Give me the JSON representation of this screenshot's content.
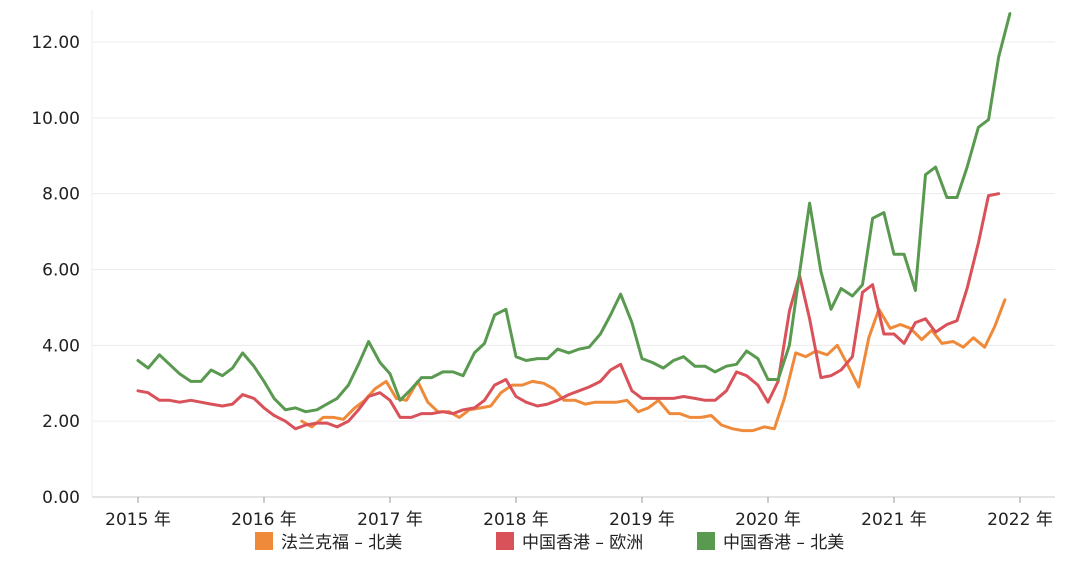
{
  "chart_data": {
    "type": "line",
    "ylim": [
      0,
      13
    ],
    "y_ticks": [
      "0.00",
      "2.00",
      "4.00",
      "6.00",
      "8.00",
      "10.00",
      "12.00"
    ],
    "x_ticks": [
      "2015 年",
      "2016 年",
      "2017 年",
      "2018 年",
      "2019 年",
      "2020 年",
      "2021 年",
      "2022 年"
    ],
    "grid": true,
    "legend_position": "bottom",
    "series": [
      {
        "name": "法兰克福 – 北美",
        "color": "#ef8a3a",
        "points": [
          [
            2016.3,
            2.0
          ],
          [
            2016.38,
            1.85
          ],
          [
            2016.47,
            2.1
          ],
          [
            2016.55,
            2.1
          ],
          [
            2016.63,
            2.05
          ],
          [
            2016.72,
            2.35
          ],
          [
            2016.8,
            2.55
          ],
          [
            2016.88,
            2.85
          ],
          [
            2016.97,
            3.05
          ],
          [
            2017.05,
            2.6
          ],
          [
            2017.13,
            2.55
          ],
          [
            2017.22,
            3.05
          ],
          [
            2017.3,
            2.5
          ],
          [
            2017.38,
            2.25
          ],
          [
            2017.47,
            2.25
          ],
          [
            2017.55,
            2.1
          ],
          [
            2017.63,
            2.3
          ],
          [
            2017.72,
            2.35
          ],
          [
            2017.8,
            2.4
          ],
          [
            2017.88,
            2.75
          ],
          [
            2017.97,
            2.95
          ],
          [
            2018.05,
            2.95
          ],
          [
            2018.13,
            3.05
          ],
          [
            2018.22,
            3.0
          ],
          [
            2018.3,
            2.85
          ],
          [
            2018.38,
            2.55
          ],
          [
            2018.47,
            2.55
          ],
          [
            2018.55,
            2.45
          ],
          [
            2018.63,
            2.5
          ],
          [
            2018.72,
            2.5
          ],
          [
            2018.8,
            2.5
          ],
          [
            2018.88,
            2.55
          ],
          [
            2018.97,
            2.25
          ],
          [
            2019.05,
            2.35
          ],
          [
            2019.13,
            2.55
          ],
          [
            2019.22,
            2.2
          ],
          [
            2019.3,
            2.2
          ],
          [
            2019.38,
            2.1
          ],
          [
            2019.47,
            2.1
          ],
          [
            2019.55,
            2.15
          ],
          [
            2019.63,
            1.9
          ],
          [
            2019.72,
            1.8
          ],
          [
            2019.8,
            1.75
          ],
          [
            2019.88,
            1.75
          ],
          [
            2019.97,
            1.85
          ],
          [
            2020.05,
            1.8
          ],
          [
            2020.13,
            2.6
          ],
          [
            2020.22,
            3.8
          ],
          [
            2020.3,
            3.7
          ],
          [
            2020.38,
            3.85
          ],
          [
            2020.47,
            3.75
          ],
          [
            2020.55,
            4.0
          ],
          [
            2020.63,
            3.5
          ],
          [
            2020.72,
            2.9
          ],
          [
            2020.8,
            4.2
          ],
          [
            2020.88,
            4.95
          ],
          [
            2020.97,
            4.45
          ],
          [
            2021.05,
            4.55
          ],
          [
            2021.13,
            4.45
          ],
          [
            2021.22,
            4.15
          ],
          [
            2021.3,
            4.4
          ],
          [
            2021.38,
            4.05
          ],
          [
            2021.47,
            4.1
          ],
          [
            2021.55,
            3.95
          ],
          [
            2021.63,
            4.2
          ],
          [
            2021.72,
            3.95
          ],
          [
            2021.8,
            4.5
          ],
          [
            2021.88,
            5.2
          ]
        ]
      },
      {
        "name": "中国香港 – 欧洲",
        "color": "#d9525a",
        "points": [
          [
            2015.0,
            2.8
          ],
          [
            2015.08,
            2.75
          ],
          [
            2015.17,
            2.55
          ],
          [
            2015.25,
            2.55
          ],
          [
            2015.33,
            2.5
          ],
          [
            2015.42,
            2.55
          ],
          [
            2015.5,
            2.5
          ],
          [
            2015.58,
            2.45
          ],
          [
            2015.67,
            2.4
          ],
          [
            2015.75,
            2.45
          ],
          [
            2015.83,
            2.7
          ],
          [
            2015.92,
            2.6
          ],
          [
            2016.0,
            2.35
          ],
          [
            2016.08,
            2.15
          ],
          [
            2016.17,
            2.0
          ],
          [
            2016.25,
            1.8
          ],
          [
            2016.33,
            1.9
          ],
          [
            2016.42,
            1.95
          ],
          [
            2016.5,
            1.95
          ],
          [
            2016.58,
            1.85
          ],
          [
            2016.67,
            2.0
          ],
          [
            2016.75,
            2.3
          ],
          [
            2016.83,
            2.65
          ],
          [
            2016.92,
            2.75
          ],
          [
            2017.0,
            2.55
          ],
          [
            2017.08,
            2.1
          ],
          [
            2017.17,
            2.1
          ],
          [
            2017.25,
            2.2
          ],
          [
            2017.33,
            2.2
          ],
          [
            2017.42,
            2.25
          ],
          [
            2017.5,
            2.2
          ],
          [
            2017.58,
            2.3
          ],
          [
            2017.67,
            2.35
          ],
          [
            2017.75,
            2.55
          ],
          [
            2017.83,
            2.95
          ],
          [
            2017.92,
            3.1
          ],
          [
            2018.0,
            2.65
          ],
          [
            2018.08,
            2.5
          ],
          [
            2018.17,
            2.4
          ],
          [
            2018.25,
            2.45
          ],
          [
            2018.33,
            2.55
          ],
          [
            2018.42,
            2.7
          ],
          [
            2018.5,
            2.8
          ],
          [
            2018.58,
            2.9
          ],
          [
            2018.67,
            3.05
          ],
          [
            2018.75,
            3.35
          ],
          [
            2018.83,
            3.5
          ],
          [
            2018.92,
            2.8
          ],
          [
            2019.0,
            2.6
          ],
          [
            2019.08,
            2.6
          ],
          [
            2019.17,
            2.6
          ],
          [
            2019.25,
            2.6
          ],
          [
            2019.33,
            2.65
          ],
          [
            2019.42,
            2.6
          ],
          [
            2019.5,
            2.55
          ],
          [
            2019.58,
            2.55
          ],
          [
            2019.67,
            2.8
          ],
          [
            2019.75,
            3.3
          ],
          [
            2019.83,
            3.2
          ],
          [
            2019.92,
            2.95
          ],
          [
            2020.0,
            2.5
          ],
          [
            2020.08,
            3.05
          ],
          [
            2020.17,
            4.9
          ],
          [
            2020.25,
            5.85
          ],
          [
            2020.33,
            4.7
          ],
          [
            2020.42,
            3.15
          ],
          [
            2020.5,
            3.2
          ],
          [
            2020.58,
            3.35
          ],
          [
            2020.67,
            3.7
          ],
          [
            2020.75,
            5.4
          ],
          [
            2020.83,
            5.6
          ],
          [
            2020.92,
            4.3
          ],
          [
            2021.0,
            4.3
          ],
          [
            2021.08,
            4.05
          ],
          [
            2021.17,
            4.6
          ],
          [
            2021.25,
            4.7
          ],
          [
            2021.33,
            4.35
          ],
          [
            2021.42,
            4.55
          ],
          [
            2021.5,
            4.65
          ],
          [
            2021.58,
            5.5
          ],
          [
            2021.67,
            6.7
          ],
          [
            2021.75,
            7.95
          ],
          [
            2021.83,
            8.0
          ]
        ]
      },
      {
        "name": "中国香港 – 北美",
        "color": "#5a9a50",
        "points": [
          [
            2015.0,
            3.6
          ],
          [
            2015.08,
            3.4
          ],
          [
            2015.17,
            3.75
          ],
          [
            2015.25,
            3.5
          ],
          [
            2015.33,
            3.25
          ],
          [
            2015.42,
            3.05
          ],
          [
            2015.5,
            3.05
          ],
          [
            2015.58,
            3.35
          ],
          [
            2015.67,
            3.2
          ],
          [
            2015.75,
            3.4
          ],
          [
            2015.83,
            3.8
          ],
          [
            2015.92,
            3.45
          ],
          [
            2016.0,
            3.05
          ],
          [
            2016.08,
            2.6
          ],
          [
            2016.17,
            2.3
          ],
          [
            2016.25,
            2.35
          ],
          [
            2016.33,
            2.25
          ],
          [
            2016.42,
            2.3
          ],
          [
            2016.5,
            2.45
          ],
          [
            2016.58,
            2.6
          ],
          [
            2016.67,
            2.95
          ],
          [
            2016.75,
            3.5
          ],
          [
            2016.83,
            4.1
          ],
          [
            2016.92,
            3.55
          ],
          [
            2017.0,
            3.25
          ],
          [
            2017.08,
            2.55
          ],
          [
            2017.17,
            2.85
          ],
          [
            2017.25,
            3.15
          ],
          [
            2017.33,
            3.15
          ],
          [
            2017.42,
            3.3
          ],
          [
            2017.5,
            3.3
          ],
          [
            2017.58,
            3.2
          ],
          [
            2017.67,
            3.8
          ],
          [
            2017.75,
            4.05
          ],
          [
            2017.83,
            4.8
          ],
          [
            2017.92,
            4.95
          ],
          [
            2018.0,
            3.7
          ],
          [
            2018.08,
            3.6
          ],
          [
            2018.17,
            3.65
          ],
          [
            2018.25,
            3.65
          ],
          [
            2018.33,
            3.9
          ],
          [
            2018.42,
            3.8
          ],
          [
            2018.5,
            3.9
          ],
          [
            2018.58,
            3.95
          ],
          [
            2018.67,
            4.3
          ],
          [
            2018.75,
            4.8
          ],
          [
            2018.83,
            5.35
          ],
          [
            2018.92,
            4.6
          ],
          [
            2019.0,
            3.65
          ],
          [
            2019.08,
            3.55
          ],
          [
            2019.17,
            3.4
          ],
          [
            2019.25,
            3.6
          ],
          [
            2019.33,
            3.7
          ],
          [
            2019.42,
            3.45
          ],
          [
            2019.5,
            3.45
          ],
          [
            2019.58,
            3.3
          ],
          [
            2019.67,
            3.45
          ],
          [
            2019.75,
            3.5
          ],
          [
            2019.83,
            3.85
          ],
          [
            2019.92,
            3.65
          ],
          [
            2020.0,
            3.1
          ],
          [
            2020.08,
            3.1
          ],
          [
            2020.17,
            4.0
          ],
          [
            2020.25,
            5.9
          ],
          [
            2020.33,
            7.75
          ],
          [
            2020.42,
            5.95
          ],
          [
            2020.5,
            4.95
          ],
          [
            2020.58,
            5.5
          ],
          [
            2020.67,
            5.3
          ],
          [
            2020.75,
            5.6
          ],
          [
            2020.83,
            7.35
          ],
          [
            2020.92,
            7.5
          ],
          [
            2021.0,
            6.4
          ],
          [
            2021.08,
            6.4
          ],
          [
            2021.17,
            5.45
          ],
          [
            2021.25,
            8.5
          ],
          [
            2021.33,
            8.7
          ],
          [
            2021.42,
            7.9
          ],
          [
            2021.5,
            7.9
          ],
          [
            2021.58,
            8.7
          ],
          [
            2021.67,
            9.75
          ],
          [
            2021.75,
            9.95
          ],
          [
            2021.83,
            11.6
          ],
          [
            2021.92,
            12.75
          ]
        ]
      }
    ]
  }
}
